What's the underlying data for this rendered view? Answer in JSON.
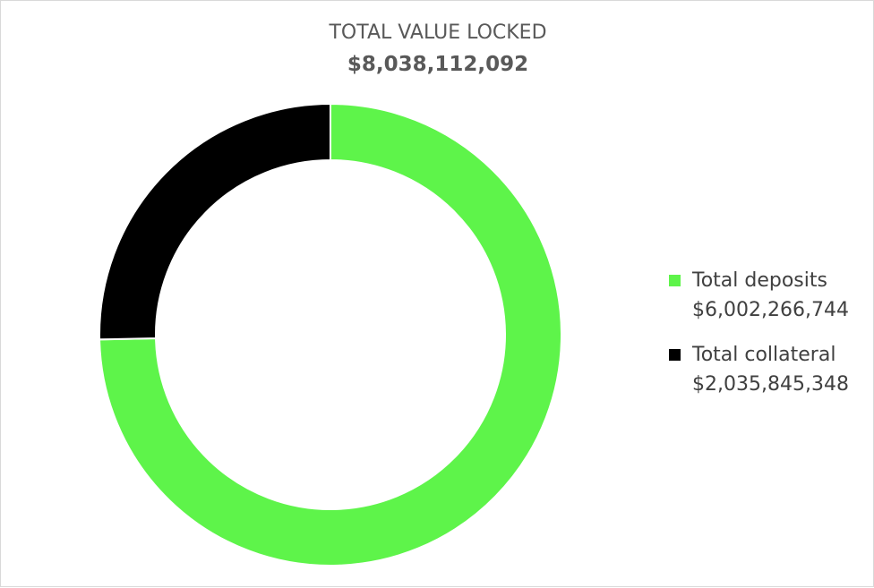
{
  "chart_data": {
    "type": "pie",
    "title": "TOTAL VALUE LOCKED",
    "subtitle": "$8,038,112,092",
    "categories": [
      "Total deposits",
      "Total collateral"
    ],
    "values": [
      6002266744,
      2035845348
    ],
    "value_labels": [
      "$6,002,266,744",
      "$2,035,845,348"
    ],
    "colors": [
      "#5ef44a",
      "#000000"
    ],
    "donut": true,
    "legend_position": "right"
  }
}
